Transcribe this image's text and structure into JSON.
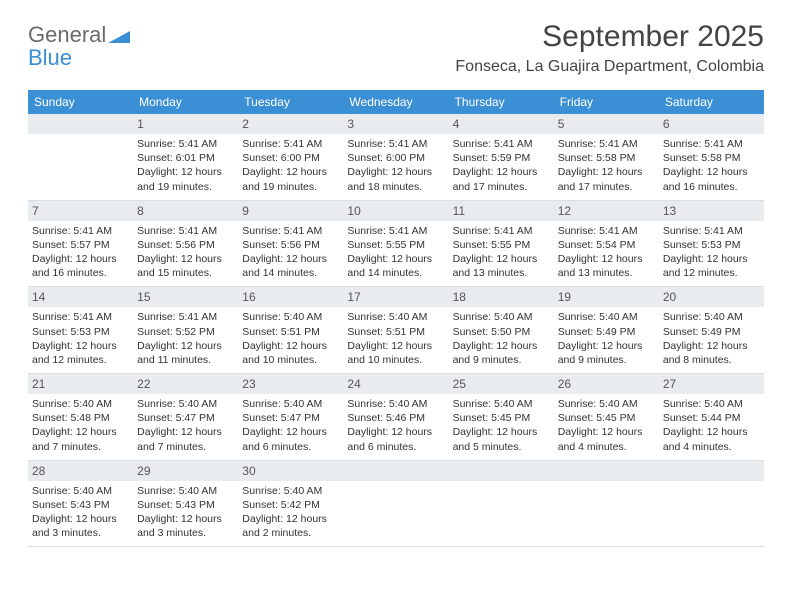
{
  "logo": {
    "part1": "General",
    "part2": "Blue"
  },
  "header": {
    "title": "September 2025",
    "location": "Fonseca, La Guajira Department, Colombia"
  },
  "colors": {
    "header_bar": "#3b8fd4",
    "daynum_bg": "#e9ecee",
    "text": "#333333",
    "title_text": "#444444",
    "logo_gray": "#6a6a6a",
    "logo_blue": "#3b8fd4"
  },
  "days_of_week": [
    "Sunday",
    "Monday",
    "Tuesday",
    "Wednesday",
    "Thursday",
    "Friday",
    "Saturday"
  ],
  "weeks": [
    [
      {
        "empty": true
      },
      {
        "n": "1",
        "sunrise": "Sunrise: 5:41 AM",
        "sunset": "Sunset: 6:01 PM",
        "daylight": "Daylight: 12 hours and 19 minutes."
      },
      {
        "n": "2",
        "sunrise": "Sunrise: 5:41 AM",
        "sunset": "Sunset: 6:00 PM",
        "daylight": "Daylight: 12 hours and 19 minutes."
      },
      {
        "n": "3",
        "sunrise": "Sunrise: 5:41 AM",
        "sunset": "Sunset: 6:00 PM",
        "daylight": "Daylight: 12 hours and 18 minutes."
      },
      {
        "n": "4",
        "sunrise": "Sunrise: 5:41 AM",
        "sunset": "Sunset: 5:59 PM",
        "daylight": "Daylight: 12 hours and 17 minutes."
      },
      {
        "n": "5",
        "sunrise": "Sunrise: 5:41 AM",
        "sunset": "Sunset: 5:58 PM",
        "daylight": "Daylight: 12 hours and 17 minutes."
      },
      {
        "n": "6",
        "sunrise": "Sunrise: 5:41 AM",
        "sunset": "Sunset: 5:58 PM",
        "daylight": "Daylight: 12 hours and 16 minutes."
      }
    ],
    [
      {
        "n": "7",
        "sunrise": "Sunrise: 5:41 AM",
        "sunset": "Sunset: 5:57 PM",
        "daylight": "Daylight: 12 hours and 16 minutes."
      },
      {
        "n": "8",
        "sunrise": "Sunrise: 5:41 AM",
        "sunset": "Sunset: 5:56 PM",
        "daylight": "Daylight: 12 hours and 15 minutes."
      },
      {
        "n": "9",
        "sunrise": "Sunrise: 5:41 AM",
        "sunset": "Sunset: 5:56 PM",
        "daylight": "Daylight: 12 hours and 14 minutes."
      },
      {
        "n": "10",
        "sunrise": "Sunrise: 5:41 AM",
        "sunset": "Sunset: 5:55 PM",
        "daylight": "Daylight: 12 hours and 14 minutes."
      },
      {
        "n": "11",
        "sunrise": "Sunrise: 5:41 AM",
        "sunset": "Sunset: 5:55 PM",
        "daylight": "Daylight: 12 hours and 13 minutes."
      },
      {
        "n": "12",
        "sunrise": "Sunrise: 5:41 AM",
        "sunset": "Sunset: 5:54 PM",
        "daylight": "Daylight: 12 hours and 13 minutes."
      },
      {
        "n": "13",
        "sunrise": "Sunrise: 5:41 AM",
        "sunset": "Sunset: 5:53 PM",
        "daylight": "Daylight: 12 hours and 12 minutes."
      }
    ],
    [
      {
        "n": "14",
        "sunrise": "Sunrise: 5:41 AM",
        "sunset": "Sunset: 5:53 PM",
        "daylight": "Daylight: 12 hours and 12 minutes."
      },
      {
        "n": "15",
        "sunrise": "Sunrise: 5:41 AM",
        "sunset": "Sunset: 5:52 PM",
        "daylight": "Daylight: 12 hours and 11 minutes."
      },
      {
        "n": "16",
        "sunrise": "Sunrise: 5:40 AM",
        "sunset": "Sunset: 5:51 PM",
        "daylight": "Daylight: 12 hours and 10 minutes."
      },
      {
        "n": "17",
        "sunrise": "Sunrise: 5:40 AM",
        "sunset": "Sunset: 5:51 PM",
        "daylight": "Daylight: 12 hours and 10 minutes."
      },
      {
        "n": "18",
        "sunrise": "Sunrise: 5:40 AM",
        "sunset": "Sunset: 5:50 PM",
        "daylight": "Daylight: 12 hours and 9 minutes."
      },
      {
        "n": "19",
        "sunrise": "Sunrise: 5:40 AM",
        "sunset": "Sunset: 5:49 PM",
        "daylight": "Daylight: 12 hours and 9 minutes."
      },
      {
        "n": "20",
        "sunrise": "Sunrise: 5:40 AM",
        "sunset": "Sunset: 5:49 PM",
        "daylight": "Daylight: 12 hours and 8 minutes."
      }
    ],
    [
      {
        "n": "21",
        "sunrise": "Sunrise: 5:40 AM",
        "sunset": "Sunset: 5:48 PM",
        "daylight": "Daylight: 12 hours and 7 minutes."
      },
      {
        "n": "22",
        "sunrise": "Sunrise: 5:40 AM",
        "sunset": "Sunset: 5:47 PM",
        "daylight": "Daylight: 12 hours and 7 minutes."
      },
      {
        "n": "23",
        "sunrise": "Sunrise: 5:40 AM",
        "sunset": "Sunset: 5:47 PM",
        "daylight": "Daylight: 12 hours and 6 minutes."
      },
      {
        "n": "24",
        "sunrise": "Sunrise: 5:40 AM",
        "sunset": "Sunset: 5:46 PM",
        "daylight": "Daylight: 12 hours and 6 minutes."
      },
      {
        "n": "25",
        "sunrise": "Sunrise: 5:40 AM",
        "sunset": "Sunset: 5:45 PM",
        "daylight": "Daylight: 12 hours and 5 minutes."
      },
      {
        "n": "26",
        "sunrise": "Sunrise: 5:40 AM",
        "sunset": "Sunset: 5:45 PM",
        "daylight": "Daylight: 12 hours and 4 minutes."
      },
      {
        "n": "27",
        "sunrise": "Sunrise: 5:40 AM",
        "sunset": "Sunset: 5:44 PM",
        "daylight": "Daylight: 12 hours and 4 minutes."
      }
    ],
    [
      {
        "n": "28",
        "sunrise": "Sunrise: 5:40 AM",
        "sunset": "Sunset: 5:43 PM",
        "daylight": "Daylight: 12 hours and 3 minutes."
      },
      {
        "n": "29",
        "sunrise": "Sunrise: 5:40 AM",
        "sunset": "Sunset: 5:43 PM",
        "daylight": "Daylight: 12 hours and 3 minutes."
      },
      {
        "n": "30",
        "sunrise": "Sunrise: 5:40 AM",
        "sunset": "Sunset: 5:42 PM",
        "daylight": "Daylight: 12 hours and 2 minutes."
      },
      {
        "empty": true
      },
      {
        "empty": true
      },
      {
        "empty": true
      },
      {
        "empty": true
      }
    ]
  ]
}
